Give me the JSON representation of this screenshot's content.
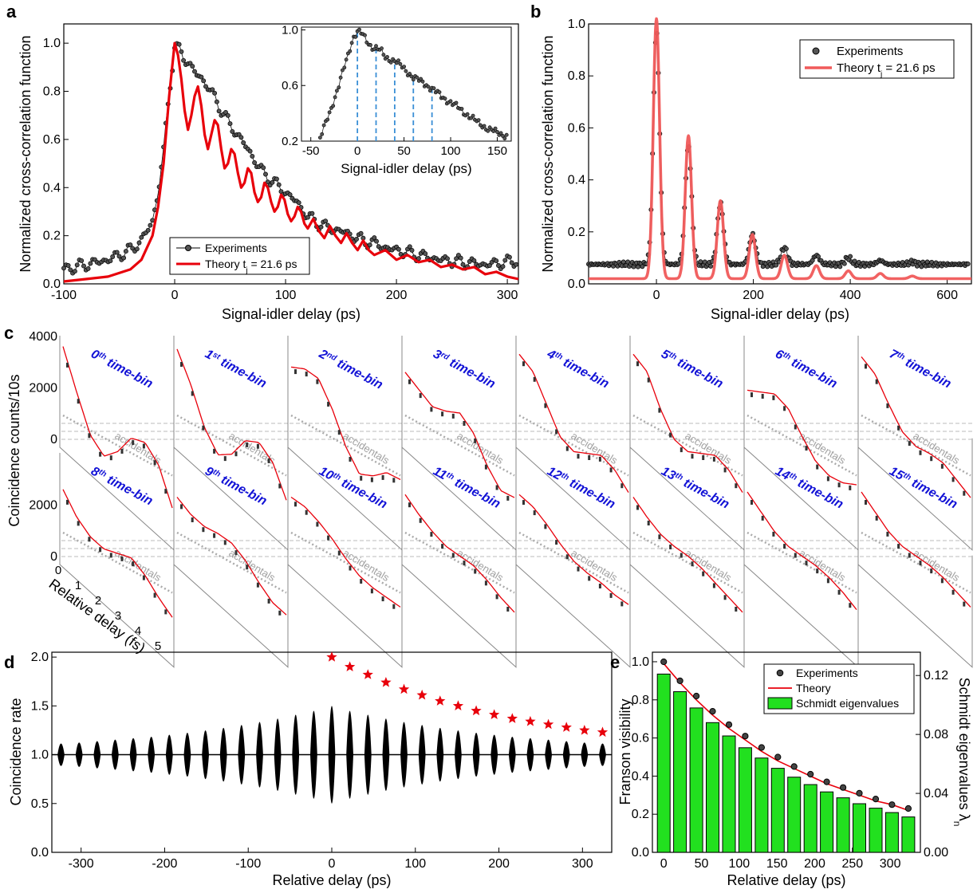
{
  "panels": {
    "a": {
      "letter": "a",
      "chart_data": {
        "type": "line",
        "xlabel": "Signal-idler delay (ps)",
        "ylabel": "Normalized cross-correlation function",
        "xlim": [
          -100,
          310
        ],
        "ylim": [
          0,
          1.08
        ],
        "xticks": [
          -100,
          0,
          100,
          200,
          300
        ],
        "xticklabels": [
          "-100",
          "0",
          "100",
          "200",
          "300"
        ],
        "yticks": [
          0,
          0.2,
          0.4,
          0.6,
          0.8,
          1.0
        ],
        "yticklabels": [
          "0.0",
          "0.2",
          "0.4",
          "0.6",
          "0.8",
          "1.0"
        ],
        "legend_position": "bottom-center",
        "series": [
          {
            "name": "Experiments",
            "style": "markers",
            "color": "#000000",
            "x": [
              -100,
              -90,
              -80,
              -70,
              -60,
              -50,
              -40,
              -30,
              -20,
              -15,
              -10,
              -5,
              0,
              5,
              10,
              15,
              20,
              25,
              30,
              35,
              40,
              45,
              50,
              60,
              70,
              80,
              90,
              100,
              110,
              120,
              130,
              140,
              150,
              160,
              170,
              180,
              190,
              200,
              220,
              240,
              260,
              280,
              300,
              310
            ],
            "y": [
              0.06,
              0.07,
              0.08,
              0.09,
              0.1,
              0.12,
              0.14,
              0.18,
              0.26,
              0.38,
              0.55,
              0.8,
              0.98,
              0.97,
              0.93,
              0.9,
              0.87,
              0.85,
              0.82,
              0.78,
              0.74,
              0.7,
              0.66,
              0.6,
              0.53,
              0.46,
              0.42,
              0.38,
              0.34,
              0.28,
              0.25,
              0.23,
              0.22,
              0.2,
              0.18,
              0.17,
              0.15,
              0.14,
              0.12,
              0.1,
              0.09,
              0.08,
              0.09,
              0.1
            ]
          },
          {
            "name": "Theory t",
            "name_subscript": "j",
            "name_suffix": " = 21.6 ps",
            "style": "line",
            "color": "#e8000b",
            "x": [
              -100,
              -80,
              -60,
              -40,
              -30,
              -20,
              -15,
              -10,
              -5,
              0,
              3,
              6,
              9,
              12,
              15,
              18,
              21,
              24,
              27,
              30,
              33,
              36,
              39,
              42,
              45,
              48,
              51,
              54,
              57,
              60,
              63,
              66,
              69,
              72,
              75,
              78,
              81,
              84,
              87,
              90,
              93,
              96,
              99,
              102,
              105,
              108,
              111,
              114,
              117,
              120,
              125,
              130,
              135,
              140,
              145,
              150,
              155,
              160,
              165,
              170,
              175,
              180,
              190,
              200,
              210,
              220,
              230,
              240,
              250,
              260,
              270,
              280,
              290,
              300,
              310
            ],
            "y": [
              0.01,
              0.02,
              0.03,
              0.06,
              0.1,
              0.2,
              0.32,
              0.5,
              0.78,
              1.0,
              0.95,
              0.85,
              0.72,
              0.64,
              0.7,
              0.78,
              0.82,
              0.74,
              0.62,
              0.56,
              0.62,
              0.68,
              0.66,
              0.56,
              0.48,
              0.5,
              0.56,
              0.54,
              0.46,
              0.4,
              0.42,
              0.48,
              0.46,
              0.38,
              0.34,
              0.36,
              0.42,
              0.4,
              0.34,
              0.3,
              0.32,
              0.37,
              0.35,
              0.29,
              0.26,
              0.28,
              0.32,
              0.3,
              0.25,
              0.23,
              0.27,
              0.22,
              0.19,
              0.24,
              0.2,
              0.17,
              0.21,
              0.17,
              0.14,
              0.18,
              0.14,
              0.12,
              0.14,
              0.1,
              0.12,
              0.09,
              0.1,
              0.07,
              0.08,
              0.06,
              0.07,
              0.04,
              0.05,
              0.03,
              0.02
            ]
          }
        ]
      },
      "inset": {
        "xlabel": "Signal-idler delay (ps)",
        "xlim": [
          -60,
          165
        ],
        "ylim": [
          0.2,
          1.02
        ],
        "xticks": [
          -50,
          0,
          50,
          100,
          150
        ],
        "xticklabels": [
          "-50",
          "0",
          "50",
          "100",
          "150"
        ],
        "yticks": [
          0.2,
          0.6,
          1.0
        ],
        "yticklabels": [
          "0.2",
          "0.6",
          "1.0"
        ],
        "dashed_lines_x": [
          0,
          20,
          40,
          60,
          80
        ],
        "x": [
          -40,
          -30,
          -20,
          -10,
          -5,
          0,
          5,
          10,
          15,
          20,
          25,
          30,
          40,
          50,
          60,
          70,
          80,
          90,
          100,
          110,
          120,
          130,
          140,
          150,
          160
        ],
        "y": [
          0.22,
          0.4,
          0.6,
          0.82,
          0.94,
          0.99,
          0.97,
          0.92,
          0.88,
          0.87,
          0.85,
          0.8,
          0.78,
          0.72,
          0.66,
          0.62,
          0.58,
          0.52,
          0.48,
          0.43,
          0.38,
          0.33,
          0.29,
          0.26,
          0.24
        ]
      }
    },
    "b": {
      "letter": "b",
      "chart_data": {
        "type": "line",
        "xlabel": "Signal-idler delay (ps)",
        "ylabel": "Normalized cross-correlation function",
        "xlim": [
          -140,
          650
        ],
        "ylim": [
          0,
          1.0
        ],
        "xticks": [
          0,
          200,
          400,
          600
        ],
        "xticklabels": [
          "0",
          "200",
          "400",
          "600"
        ],
        "yticks": [
          0,
          0.2,
          0.4,
          0.6,
          0.8,
          1.0
        ],
        "yticklabels": [
          "0.0",
          "0.2",
          "0.4",
          "0.6",
          "0.8",
          "1.0"
        ],
        "legend_position": "top-right",
        "peaks_x": [
          0,
          66,
          132,
          198,
          264,
          330,
          396,
          462,
          528
        ],
        "theory_peaks_y": [
          1.0,
          0.55,
          0.3,
          0.17,
          0.09,
          0.05,
          0.03,
          0.02,
          0.01
        ],
        "exp_peaks_y": [
          0.97,
          0.53,
          0.31,
          0.19,
          0.14,
          0.11,
          0.1,
          0.09,
          0.085
        ],
        "exp_baseline": 0.075,
        "series": [
          {
            "name": "Experiments",
            "style": "markers",
            "color": "#000000"
          },
          {
            "name": "Theory t",
            "name_subscript": "j",
            "name_suffix": " = 21.6 ps",
            "style": "line",
            "color": "#f05a5a"
          }
        ]
      }
    },
    "c": {
      "letter": "c",
      "ylabel": "Coincidence counts/10s",
      "depth_label": "Relative delay (fs)",
      "yticklabels": [
        "0",
        "2000",
        "4000"
      ],
      "depth_ticklabels": [
        "0",
        "1",
        "2",
        "3",
        "4",
        "5"
      ],
      "accidentals_label": "accidentals",
      "bin_suffix": "time-bin",
      "bins": [
        {
          "num": "0",
          "sup": "th",
          "values": [
            3300,
            1900,
            600,
            150,
            700,
            1600,
            1800,
            1300,
            0
          ]
        },
        {
          "num": "1",
          "sup": "st",
          "values": [
            3200,
            2200,
            900,
            200,
            600,
            1500,
            1800,
            1400,
            300
          ]
        },
        {
          "num": "2",
          "sup": "nd",
          "values": [
            2500,
            2800,
            2800,
            2000,
            900,
            200,
            500,
            1000,
            1100
          ]
        },
        {
          "num": "3",
          "sup": "rd",
          "values": [
            2300,
            2000,
            1700,
            1900,
            2200,
            1800,
            900,
            300,
            400
          ]
        },
        {
          "num": "4",
          "sup": "th",
          "values": [
            3000,
            2700,
            1800,
            900,
            700,
            1000,
            1300,
            1100,
            600
          ]
        },
        {
          "num": "5",
          "sup": "th",
          "values": [
            3000,
            2700,
            1600,
            800,
            700,
            1000,
            1300,
            1100,
            600
          ]
        },
        {
          "num": "6",
          "sup": "th",
          "values": [
            1600,
            1900,
            2200,
            2000,
            1300,
            700,
            500,
            600,
            900
          ]
        },
        {
          "num": "7",
          "sup": "th",
          "values": [
            2900,
            2600,
            1800,
            1100,
            900,
            1000,
            1000,
            700,
            400
          ]
        },
        {
          "num": "8",
          "sup": "th",
          "values": [
            2300,
            1600,
            1200,
            1100,
            1300,
            1500,
            1200,
            700,
            300
          ]
        },
        {
          "num": "9",
          "sup": "th",
          "values": [
            2000,
            1700,
            1600,
            1700,
            1700,
            1400,
            900,
            500,
            400
          ]
        },
        {
          "num": "10",
          "sup": "th",
          "values": [
            2000,
            2000,
            1800,
            1500,
            1100,
            800,
            700,
            700,
            700
          ]
        },
        {
          "num": "11",
          "sup": "th",
          "values": [
            2100,
            1700,
            1400,
            1200,
            1200,
            1200,
            1000,
            700,
            500
          ]
        },
        {
          "num": "12",
          "sup": "th",
          "values": [
            2100,
            2000,
            1700,
            1300,
            1000,
            900,
            900,
            800,
            800
          ]
        },
        {
          "num": "13",
          "sup": "th",
          "values": [
            2000,
            1600,
            1300,
            1200,
            1200,
            1100,
            900,
            700,
            500
          ]
        },
        {
          "num": "14",
          "sup": "th",
          "values": [
            2200,
            1800,
            1400,
            1200,
            1200,
            1200,
            1100,
            900,
            600
          ]
        },
        {
          "num": "15",
          "sup": "th",
          "values": [
            2200,
            1800,
            1400,
            1200,
            1200,
            1200,
            1100,
            900,
            700
          ]
        }
      ]
    },
    "d": {
      "letter": "d",
      "chart_data": {
        "type": "line",
        "xlabel": "Relative delay (ps)",
        "ylabel": "Coincidence rate",
        "xlim": [
          -335,
          335
        ],
        "ylim": [
          0,
          2.05
        ],
        "xticks": [
          -300,
          -200,
          -100,
          0,
          100,
          200,
          300
        ],
        "xticklabels": [
          "-300",
          "-200",
          "-100",
          "0",
          "100",
          "200",
          "300"
        ],
        "yticks": [
          0,
          0.5,
          1.0,
          1.5,
          2.0
        ],
        "yticklabels": [
          "0.0",
          "0.5",
          "1.0",
          "1.5",
          "2.0"
        ],
        "lobe_spacing_ps": 21.6,
        "envelope_x": [
          0,
          21.6,
          43.2,
          64.8,
          86.4,
          108,
          129.6,
          151.2,
          172.8,
          194.4,
          216,
          237.6,
          259.2,
          280.8,
          302.4,
          324
        ],
        "envelope_y": [
          1.0,
          0.9,
          0.82,
          0.74,
          0.67,
          0.61,
          0.55,
          0.5,
          0.45,
          0.41,
          0.37,
          0.34,
          0.31,
          0.28,
          0.25,
          0.23
        ],
        "series": [
          {
            "name": "",
            "style": "fringes",
            "color": "#000000"
          },
          {
            "name": "",
            "style": "star-markers",
            "color": "#e8000b",
            "x": [
              0,
              21.6,
              43.2,
              64.8,
              86.4,
              108,
              129.6,
              151.2,
              172.8,
              194.4,
              216,
              237.6,
              259.2,
              280.8,
              302.4,
              324
            ],
            "y": [
              2.0,
              1.9,
              1.82,
              1.74,
              1.67,
              1.61,
              1.55,
              1.5,
              1.45,
              1.41,
              1.37,
              1.34,
              1.31,
              1.28,
              1.25,
              1.23
            ]
          }
        ]
      }
    },
    "e": {
      "letter": "e",
      "chart_data": {
        "type": "bar",
        "xlabel": "Relative delay (ps)",
        "ylabel": "Franson visibility",
        "y2label": "Schmidt eigenvalues λ",
        "y2label_subscript": "n",
        "xlim": [
          -15,
          340
        ],
        "ylim": [
          0,
          1.05
        ],
        "y2lim": [
          0,
          0.1358
        ],
        "xticks": [
          0,
          50,
          100,
          150,
          200,
          250,
          300
        ],
        "xticklabels": [
          "0",
          "50",
          "100",
          "150",
          "200",
          "250",
          "300"
        ],
        "yticks": [
          0,
          0.2,
          0.4,
          0.6,
          0.8,
          1.0
        ],
        "yticklabels": [
          "0.0",
          "0.2",
          "0.4",
          "0.6",
          "0.8",
          "1.0"
        ],
        "y2ticks": [
          0,
          0.04,
          0.08,
          0.12
        ],
        "y2ticklabels": [
          "0.00",
          "0.04",
          "0.08",
          "0.12"
        ],
        "legend_position": "top-right",
        "x": [
          0,
          21.6,
          43.2,
          64.8,
          86.4,
          108,
          129.6,
          151.2,
          172.8,
          194.4,
          216,
          237.6,
          259.2,
          280.8,
          302.4,
          324
        ],
        "series": [
          {
            "name": "Experiments",
            "style": "markers",
            "color": "#000000",
            "values": [
              1.0,
              0.9,
              0.82,
              0.74,
              0.67,
              0.61,
              0.55,
              0.5,
              0.45,
              0.41,
              0.37,
              0.34,
              0.31,
              0.28,
              0.25,
              0.23
            ]
          },
          {
            "name": "Theory",
            "style": "line",
            "color": "#e8000b",
            "values": [
              0.99,
              0.89,
              0.8,
              0.72,
              0.65,
              0.59,
              0.53,
              0.48,
              0.44,
              0.4,
              0.36,
              0.33,
              0.3,
              0.27,
              0.25,
              0.22
            ]
          },
          {
            "name": "Schmidt eigenvalues",
            "style": "bars",
            "color": "#22e01f",
            "axis": "right",
            "values": [
              0.121,
              0.109,
              0.098,
              0.088,
              0.079,
              0.071,
              0.064,
              0.057,
              0.051,
              0.046,
              0.041,
              0.037,
              0.033,
              0.03,
              0.027,
              0.024
            ]
          }
        ]
      }
    }
  }
}
